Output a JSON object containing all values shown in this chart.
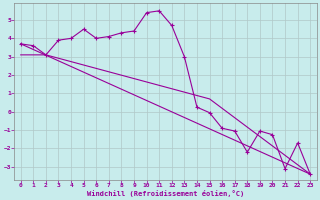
{
  "xlabel": "Windchill (Refroidissement éolien,°C)",
  "bg_color": "#c8ecec",
  "line_color": "#990099",
  "grid_color": "#b0c8c8",
  "spine_color": "#888888",
  "xlim": [
    -0.5,
    23.5
  ],
  "ylim": [
    -3.7,
    5.9
  ],
  "xticks": [
    0,
    1,
    2,
    3,
    4,
    5,
    6,
    7,
    8,
    9,
    10,
    11,
    12,
    13,
    14,
    15,
    16,
    17,
    18,
    19,
    20,
    21,
    22,
    23
  ],
  "yticks": [
    -3,
    -2,
    -1,
    0,
    1,
    2,
    3,
    4,
    5
  ],
  "line1_x": [
    0,
    1,
    2,
    3,
    4,
    5,
    6,
    7,
    8,
    9,
    10,
    11,
    12,
    13,
    14,
    15,
    16,
    17,
    18,
    19,
    20,
    21,
    22,
    23
  ],
  "line1_y": [
    3.7,
    3.6,
    3.1,
    3.9,
    4.0,
    4.5,
    4.0,
    4.1,
    4.3,
    4.4,
    5.4,
    5.5,
    4.7,
    3.0,
    0.25,
    -0.05,
    -0.9,
    -1.05,
    -2.2,
    -1.05,
    -1.25,
    -3.1,
    -1.7,
    -3.4
  ],
  "line2_x": [
    0,
    23
  ],
  "line2_y": [
    3.7,
    -3.4
  ],
  "line3_x": [
    0,
    2,
    15,
    23
  ],
  "line3_y": [
    3.1,
    3.1,
    0.7,
    -3.4
  ]
}
